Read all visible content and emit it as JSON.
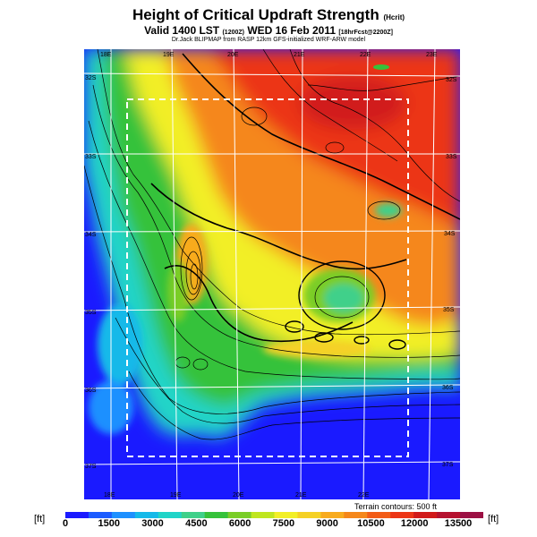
{
  "header": {
    "title": "Height of Critical Updraft Strength",
    "title_unit": "(Hcrit)",
    "valid_prefix": "Valid 1400 LST",
    "valid_mid": "(1200Z)",
    "valid_date": "WED 16 Feb 2011",
    "valid_suffix": "[18hrFcst@2200Z]",
    "credit": "Dr.Jack BLIPMAP from RASP 12km GFS-initialized WRF-ARW model"
  },
  "map": {
    "lon_labels_top": [
      "18E",
      "19E",
      "20E",
      "21E",
      "22E",
      "23E"
    ],
    "lon_labels_bottom": [
      "18E",
      "19E",
      "20E",
      "21E",
      "22E"
    ],
    "lat_labels_left": [
      "32S",
      "33S",
      "34S",
      "35S",
      "36S",
      "37S"
    ],
    "lat_labels_right": [
      "32S",
      "33S",
      "34S",
      "35S",
      "36S",
      "37S"
    ],
    "terrain_note": "Terrain contours: 500 ft"
  },
  "colorbar": {
    "unit_left": "[ft]",
    "unit_right": "[ft]",
    "tick_labels": [
      "0",
      "1500",
      "3000",
      "4500",
      "6000",
      "7500",
      "9000",
      "10500",
      "12000",
      "13500"
    ],
    "colors": [
      "#1a1aff",
      "#1c5cff",
      "#1e90ff",
      "#16b9e9",
      "#20d4c8",
      "#3fd08a",
      "#36c23a",
      "#7acd28",
      "#bfe61f",
      "#f2ef27",
      "#f5d125",
      "#f8ab1e",
      "#f5871a",
      "#f25c17",
      "#ec3516",
      "#d11a1a",
      "#b6122f",
      "#9c1044"
    ]
  }
}
